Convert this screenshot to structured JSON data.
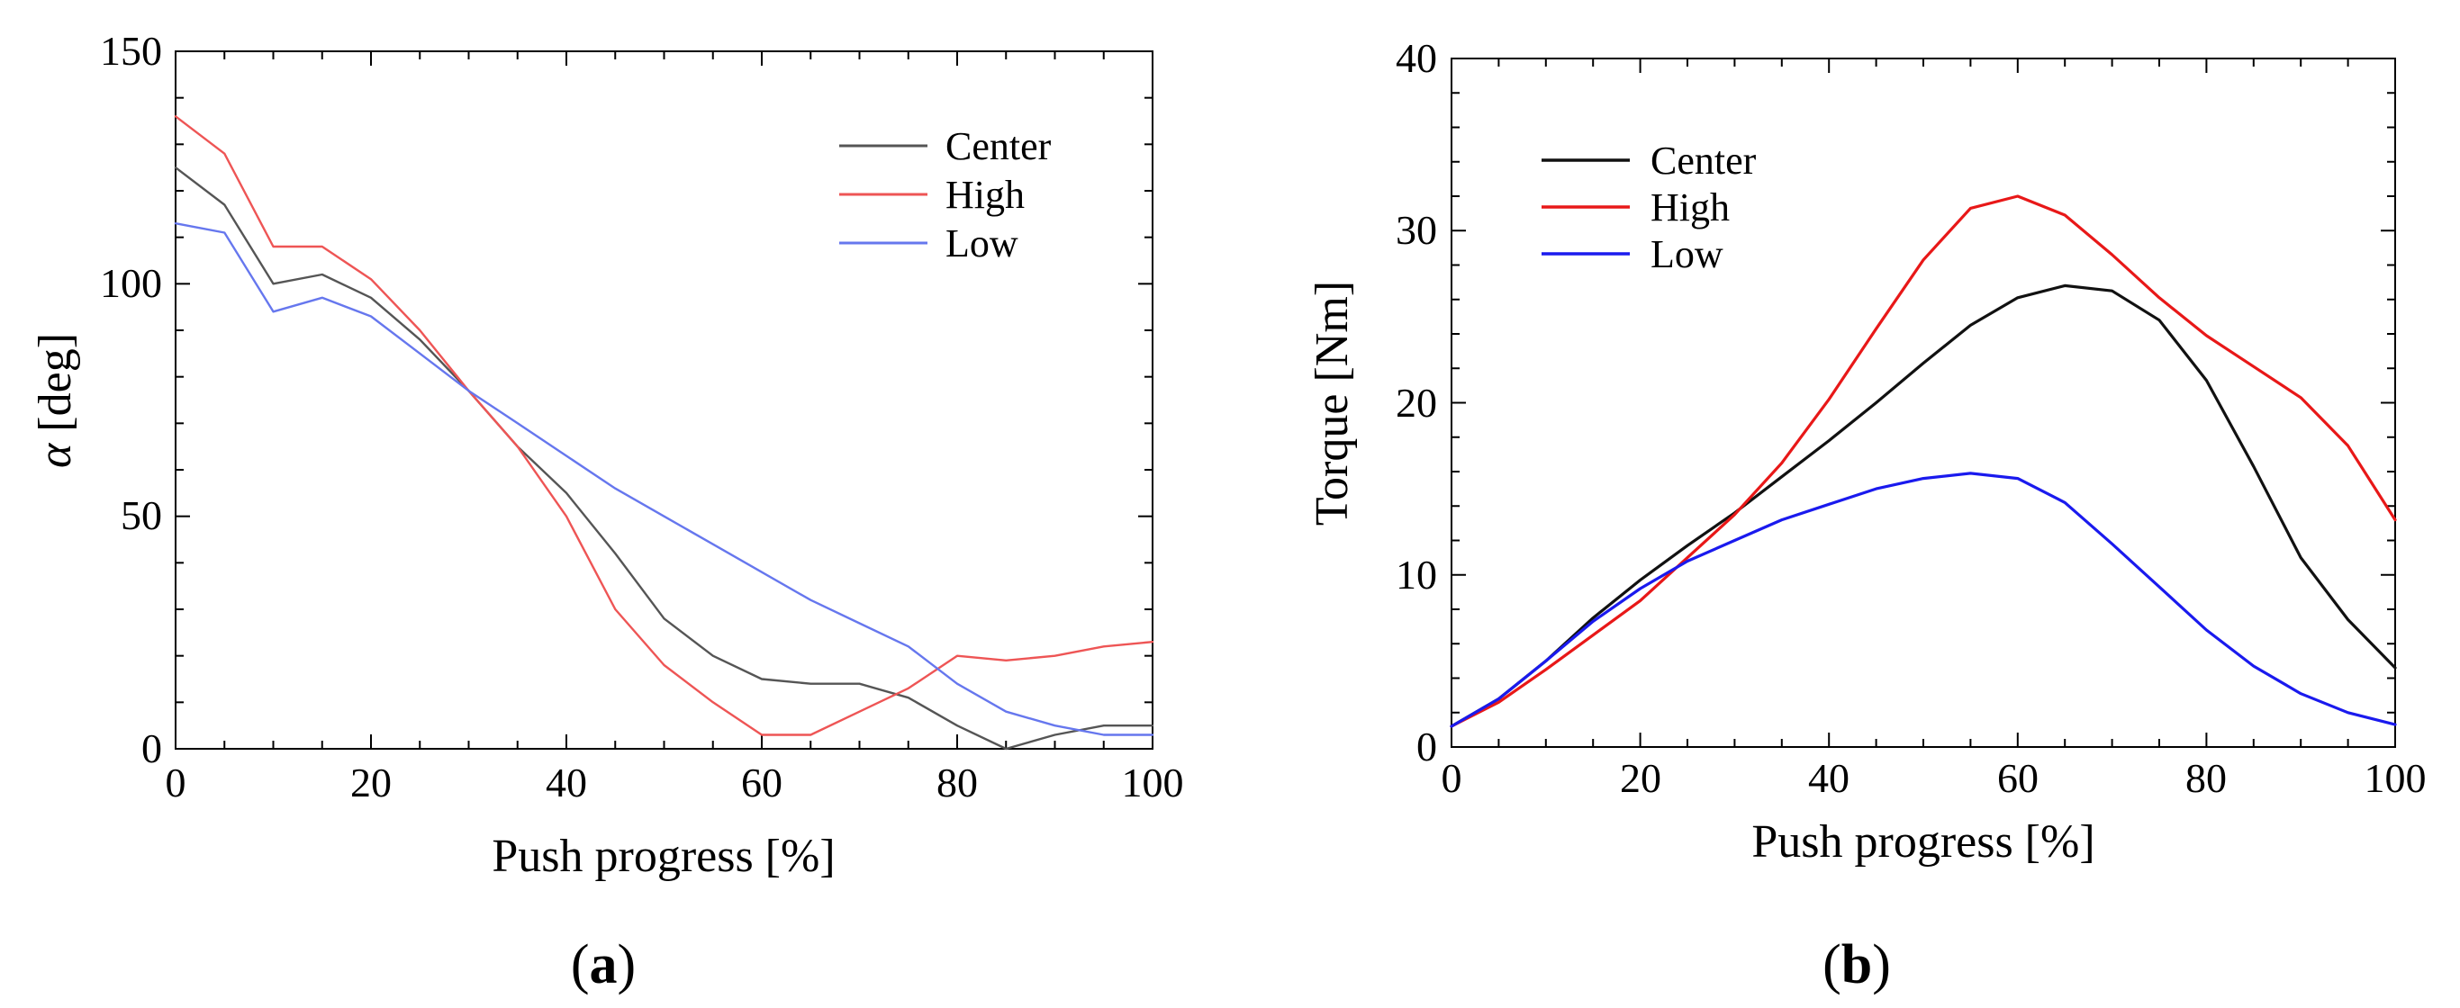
{
  "chart_data": [
    {
      "id": "a",
      "type": "line",
      "caption": {
        "open": "(",
        "letter": "a",
        "close": ")"
      },
      "xlabel": "Push progress [%]",
      "ylabel_symbol": "α",
      "ylabel_unit": " [deg]",
      "xlim": [
        0,
        100
      ],
      "ylim": [
        0,
        150
      ],
      "xticks": [
        0,
        20,
        40,
        60,
        80,
        100
      ],
      "xtick_labels": [
        "0",
        "20",
        "40",
        "60",
        "80",
        "100"
      ],
      "yticks": [
        0,
        50,
        100,
        150
      ],
      "ytick_labels": [
        "0",
        "50",
        "100",
        "150"
      ],
      "legend_position": "top-right",
      "series": [
        {
          "name": "Center",
          "color": "#555555",
          "x": [
            0,
            5,
            10,
            15,
            20,
            25,
            30,
            35,
            40,
            45,
            50,
            55,
            60,
            65,
            70,
            75,
            80,
            85,
            90,
            95,
            100
          ],
          "y": [
            125,
            117,
            100,
            102,
            97,
            88,
            77,
            65,
            55,
            42,
            28,
            20,
            15,
            14,
            14,
            11,
            5,
            0,
            3,
            5,
            5
          ]
        },
        {
          "name": "High",
          "color": "#ee5555",
          "x": [
            0,
            5,
            10,
            15,
            20,
            25,
            30,
            35,
            40,
            45,
            50,
            55,
            60,
            65,
            70,
            75,
            80,
            85,
            90,
            95,
            100
          ],
          "y": [
            136,
            128,
            108,
            108,
            101,
            90,
            77,
            65,
            50,
            30,
            18,
            10,
            3,
            3,
            8,
            13,
            20,
            19,
            20,
            22,
            23
          ]
        },
        {
          "name": "Low",
          "color": "#6677ee",
          "x": [
            0,
            5,
            10,
            15,
            20,
            25,
            30,
            35,
            40,
            45,
            50,
            55,
            60,
            65,
            70,
            75,
            80,
            85,
            90,
            95,
            100
          ],
          "y": [
            113,
            111,
            94,
            97,
            93,
            85,
            77,
            70,
            63,
            56,
            50,
            44,
            38,
            32,
            27,
            22,
            14,
            8,
            5,
            3,
            3
          ]
        }
      ]
    },
    {
      "id": "b",
      "type": "line",
      "caption": {
        "open": "(",
        "letter": "b",
        "close": ")"
      },
      "xlabel": "Push progress [%]",
      "ylabel": "Torque [Nm]",
      "xlim": [
        0,
        100
      ],
      "ylim": [
        0,
        40
      ],
      "xticks": [
        0,
        20,
        40,
        60,
        80,
        100
      ],
      "xtick_labels": [
        "0",
        "20",
        "40",
        "60",
        "80",
        "100"
      ],
      "yticks": [
        0,
        10,
        20,
        30,
        40
      ],
      "ytick_labels": [
        "0",
        "10",
        "20",
        "30",
        "40"
      ],
      "legend_position": "top-left",
      "series": [
        {
          "name": "Center",
          "color": "#111111",
          "x": [
            0,
            5,
            10,
            15,
            20,
            25,
            30,
            35,
            40,
            45,
            50,
            55,
            60,
            65,
            70,
            75,
            80,
            85,
            90,
            95,
            100
          ],
          "y": [
            1.2,
            2.8,
            5,
            7.5,
            9.7,
            11.7,
            13.6,
            15.7,
            17.8,
            20,
            22.3,
            24.5,
            26.1,
            26.8,
            26.5,
            24.8,
            21.3,
            16.3,
            11,
            7.4,
            4.6
          ]
        },
        {
          "name": "High",
          "color": "#e81818",
          "x": [
            0,
            5,
            10,
            15,
            20,
            25,
            30,
            35,
            40,
            45,
            50,
            55,
            60,
            65,
            70,
            75,
            80,
            85,
            90,
            95,
            100
          ],
          "y": [
            1.2,
            2.6,
            4.5,
            6.5,
            8.5,
            11,
            13.5,
            16.5,
            20.2,
            24.3,
            28.3,
            31.3,
            32,
            30.9,
            28.6,
            26.1,
            23.9,
            22.1,
            20.3,
            17.5,
            13.2
          ]
        },
        {
          "name": "Low",
          "color": "#1a1aee",
          "x": [
            0,
            5,
            10,
            15,
            20,
            25,
            30,
            35,
            40,
            45,
            50,
            55,
            60,
            65,
            70,
            75,
            80,
            85,
            90,
            95,
            100
          ],
          "y": [
            1.2,
            2.8,
            5,
            7.3,
            9.2,
            10.8,
            12,
            13.2,
            14.1,
            15,
            15.6,
            15.9,
            15.6,
            14.2,
            11.8,
            9.3,
            6.8,
            4.7,
            3.1,
            2,
            1.3
          ]
        }
      ]
    }
  ]
}
